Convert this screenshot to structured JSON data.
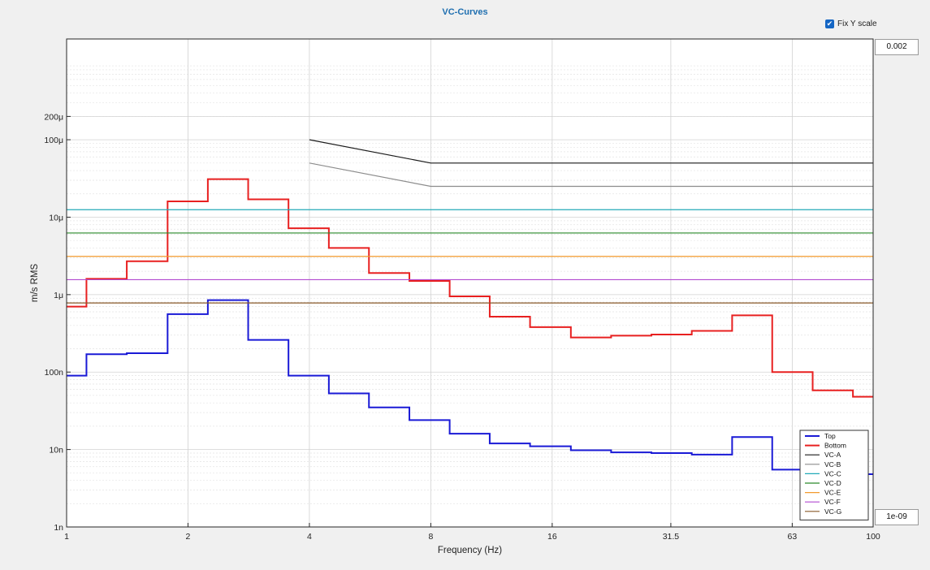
{
  "fix_y_scale": {
    "label": "Fix Y scale",
    "checked": true
  },
  "y_max_input": "0.002",
  "y_min_input": "1e-09",
  "chart_data": {
    "type": "line",
    "title": "VC-Curves",
    "xlabel": "Frequency (Hz)",
    "ylabel": "m/s RMS",
    "xscale": "log",
    "yscale": "log",
    "xlim": [
      1,
      100
    ],
    "ylim": [
      1e-09,
      0.002
    ],
    "xticks": [
      {
        "v": 1,
        "label": "1"
      },
      {
        "v": 2,
        "label": "2"
      },
      {
        "v": 4,
        "label": "4"
      },
      {
        "v": 8,
        "label": "8"
      },
      {
        "v": 16,
        "label": "16"
      },
      {
        "v": 31.5,
        "label": "31.5"
      },
      {
        "v": 63,
        "label": "63"
      },
      {
        "v": 100,
        "label": "100"
      }
    ],
    "yticks": [
      {
        "v": 1e-09,
        "label": "1n"
      },
      {
        "v": 1e-08,
        "label": "10n"
      },
      {
        "v": 1e-07,
        "label": "100n"
      },
      {
        "v": 1e-06,
        "label": "1μ"
      },
      {
        "v": 1e-05,
        "label": "10μ"
      },
      {
        "v": 0.0001,
        "label": "100μ"
      },
      {
        "v": 0.0002,
        "label": "200μ"
      }
    ],
    "grid": true,
    "legend_position": "bottom-right",
    "series": [
      {
        "name": "Top",
        "color": "#1a1ad6",
        "width": 2,
        "step": true,
        "x": [
          1,
          1.12,
          1.41,
          1.78,
          2.24,
          2.82,
          3.55,
          4.47,
          5.62,
          7.08,
          8.91,
          11.2,
          14.1,
          17.8,
          22.4,
          28.2,
          35.5,
          44.7,
          56.2,
          70.8,
          89.1,
          100
        ],
        "y": [
          9e-08,
          1.7e-07,
          1.75e-07,
          5.6e-07,
          8.5e-07,
          2.6e-07,
          9e-08,
          5.3e-08,
          3.5e-08,
          2.4e-08,
          1.6e-08,
          1.2e-08,
          1.1e-08,
          9.8e-09,
          9.2e-09,
          9e-09,
          8.6e-09,
          1.45e-08,
          5.5e-09,
          5.2e-09,
          4.8e-09,
          4.8e-09
        ]
      },
      {
        "name": "Bottom",
        "color": "#e82020",
        "width": 2,
        "step": true,
        "x": [
          1,
          1.12,
          1.41,
          1.78,
          2.24,
          2.82,
          3.55,
          4.47,
          5.62,
          7.08,
          8.91,
          11.2,
          14.1,
          17.8,
          22.4,
          28.2,
          35.5,
          44.7,
          56.2,
          70.8,
          89.1,
          100
        ],
        "y": [
          7e-07,
          1.6e-06,
          2.7e-06,
          1.6e-05,
          3.1e-05,
          1.7e-05,
          7.2e-06,
          4e-06,
          1.9e-06,
          1.5e-06,
          9.5e-07,
          5.2e-07,
          3.8e-07,
          2.8e-07,
          2.95e-07,
          3.05e-07,
          3.4e-07,
          5.4e-07,
          1e-07,
          5.8e-08,
          4.8e-08,
          4.8e-08
        ]
      },
      {
        "name": "VC-A",
        "color": "#1a1a1a",
        "width": 1.2,
        "x": [
          4,
          8,
          100
        ],
        "y": [
          0.0001,
          5e-05,
          5e-05
        ]
      },
      {
        "name": "VC-B",
        "color": "#8c8c8c",
        "width": 1.2,
        "x": [
          4,
          8,
          100
        ],
        "y": [
          5e-05,
          2.5e-05,
          2.5e-05
        ]
      },
      {
        "name": "VC-C",
        "color": "#22aab8",
        "width": 1.2,
        "x": [
          1,
          100
        ],
        "y": [
          1.25e-05,
          1.25e-05
        ]
      },
      {
        "name": "VC-D",
        "color": "#2a8a2a",
        "width": 1.2,
        "x": [
          1,
          100
        ],
        "y": [
          6.25e-06,
          6.25e-06
        ]
      },
      {
        "name": "VC-E",
        "color": "#f29a2e",
        "width": 1.2,
        "x": [
          1,
          100
        ],
        "y": [
          3.12e-06,
          3.12e-06
        ]
      },
      {
        "name": "VC-F",
        "color": "#b24ad0",
        "width": 1.2,
        "x": [
          1,
          100
        ],
        "y": [
          1.56e-06,
          1.56e-06
        ]
      },
      {
        "name": "VC-G",
        "color": "#8a5a2a",
        "width": 1.2,
        "x": [
          1,
          100
        ],
        "y": [
          7.8e-07,
          7.8e-07
        ]
      }
    ]
  }
}
